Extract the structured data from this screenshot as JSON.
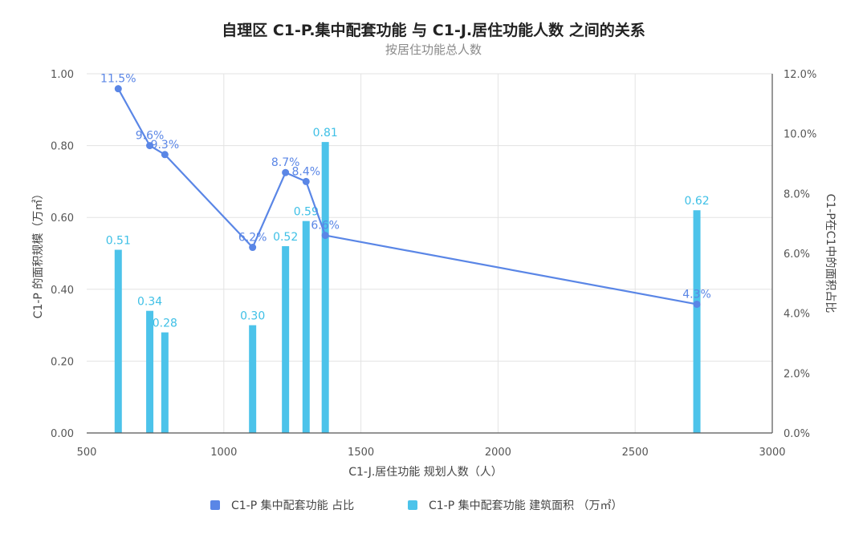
{
  "chart_data": {
    "type": "bar+line",
    "title": "自理区 C1-P.集中配套功能 与 C1-J.居住功能人数 之间的关系",
    "subtitle": "按居住功能总人数",
    "xlabel": "C1-J.居住功能 规划人数（人）",
    "ylabel_left": "C1-P 的面积规模（万㎡）",
    "ylabel_right": "C1-P在C1中的面积占比",
    "xlim": [
      500,
      3000
    ],
    "x_ticks": [
      "500",
      "1000",
      "1500",
      "2000",
      "2500",
      "3000"
    ],
    "ylim_left": [
      0,
      1
    ],
    "y_ticks_left": [
      "0.00",
      "0.20",
      "0.40",
      "0.60",
      "0.80",
      "1.00"
    ],
    "ylim_right": [
      0,
      12
    ],
    "y_ticks_right": [
      "0.0%",
      "2.0%",
      "4.0%",
      "6.0%",
      "8.0%",
      "10.0%",
      "12.0%"
    ],
    "grid": true,
    "legend_position": "bottom",
    "x": [
      615,
      730,
      785,
      1105,
      1225,
      1300,
      1370,
      2725
    ],
    "series": [
      {
        "name": "C1-P 集中配套功能 占比",
        "kind": "line",
        "axis": "right",
        "color": "#5a86e6",
        "values": [
          11.5,
          9.6,
          9.3,
          6.2,
          8.7,
          8.4,
          6.6,
          4.3
        ],
        "labels": [
          "11.5%",
          "9.6%",
          "9.3%",
          "6.2%",
          "8.7%",
          "8.4%",
          "6.6%",
          "4.3%"
        ]
      },
      {
        "name": "C1-P 集中配套功能 建筑面积 （万㎡）",
        "kind": "bar",
        "axis": "left",
        "color": "#4cc3ea",
        "values": [
          0.51,
          0.34,
          0.28,
          0.3,
          0.52,
          0.59,
          0.81,
          0.62
        ],
        "labels": [
          "0.51",
          "0.34",
          "0.28",
          "0.30",
          "0.52",
          "0.59",
          "0.81",
          "0.62"
        ]
      }
    ]
  }
}
